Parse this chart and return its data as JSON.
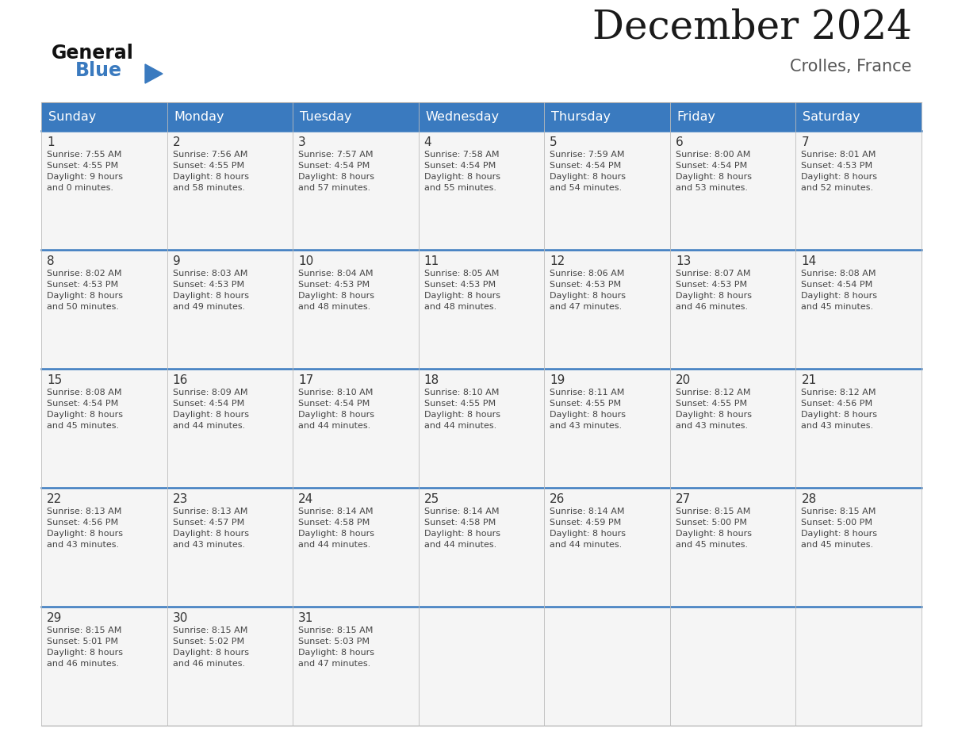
{
  "title": "December 2024",
  "subtitle": "Crolles, France",
  "header_color": "#3a7abf",
  "header_text_color": "#ffffff",
  "days_of_week": [
    "Sunday",
    "Monday",
    "Tuesday",
    "Wednesday",
    "Thursday",
    "Friday",
    "Saturday"
  ],
  "bg_color": "#ffffff",
  "cell_bg_color": "#f5f5f5",
  "divider_color": "#3a7abf",
  "day_number_color": "#333333",
  "text_color": "#444444",
  "calendar_data": [
    [
      {
        "day": 1,
        "sunrise": "7:55 AM",
        "sunset": "4:55 PM",
        "hours": 9,
        "minutes": 0
      },
      {
        "day": 2,
        "sunrise": "7:56 AM",
        "sunset": "4:55 PM",
        "hours": 8,
        "minutes": 58
      },
      {
        "day": 3,
        "sunrise": "7:57 AM",
        "sunset": "4:54 PM",
        "hours": 8,
        "minutes": 57
      },
      {
        "day": 4,
        "sunrise": "7:58 AM",
        "sunset": "4:54 PM",
        "hours": 8,
        "minutes": 55
      },
      {
        "day": 5,
        "sunrise": "7:59 AM",
        "sunset": "4:54 PM",
        "hours": 8,
        "minutes": 54
      },
      {
        "day": 6,
        "sunrise": "8:00 AM",
        "sunset": "4:54 PM",
        "hours": 8,
        "minutes": 53
      },
      {
        "day": 7,
        "sunrise": "8:01 AM",
        "sunset": "4:53 PM",
        "hours": 8,
        "minutes": 52
      }
    ],
    [
      {
        "day": 8,
        "sunrise": "8:02 AM",
        "sunset": "4:53 PM",
        "hours": 8,
        "minutes": 50
      },
      {
        "day": 9,
        "sunrise": "8:03 AM",
        "sunset": "4:53 PM",
        "hours": 8,
        "minutes": 49
      },
      {
        "day": 10,
        "sunrise": "8:04 AM",
        "sunset": "4:53 PM",
        "hours": 8,
        "minutes": 48
      },
      {
        "day": 11,
        "sunrise": "8:05 AM",
        "sunset": "4:53 PM",
        "hours": 8,
        "minutes": 48
      },
      {
        "day": 12,
        "sunrise": "8:06 AM",
        "sunset": "4:53 PM",
        "hours": 8,
        "minutes": 47
      },
      {
        "day": 13,
        "sunrise": "8:07 AM",
        "sunset": "4:53 PM",
        "hours": 8,
        "minutes": 46
      },
      {
        "day": 14,
        "sunrise": "8:08 AM",
        "sunset": "4:54 PM",
        "hours": 8,
        "minutes": 45
      }
    ],
    [
      {
        "day": 15,
        "sunrise": "8:08 AM",
        "sunset": "4:54 PM",
        "hours": 8,
        "minutes": 45
      },
      {
        "day": 16,
        "sunrise": "8:09 AM",
        "sunset": "4:54 PM",
        "hours": 8,
        "minutes": 44
      },
      {
        "day": 17,
        "sunrise": "8:10 AM",
        "sunset": "4:54 PM",
        "hours": 8,
        "minutes": 44
      },
      {
        "day": 18,
        "sunrise": "8:10 AM",
        "sunset": "4:55 PM",
        "hours": 8,
        "minutes": 44
      },
      {
        "day": 19,
        "sunrise": "8:11 AM",
        "sunset": "4:55 PM",
        "hours": 8,
        "minutes": 43
      },
      {
        "day": 20,
        "sunrise": "8:12 AM",
        "sunset": "4:55 PM",
        "hours": 8,
        "minutes": 43
      },
      {
        "day": 21,
        "sunrise": "8:12 AM",
        "sunset": "4:56 PM",
        "hours": 8,
        "minutes": 43
      }
    ],
    [
      {
        "day": 22,
        "sunrise": "8:13 AM",
        "sunset": "4:56 PM",
        "hours": 8,
        "minutes": 43
      },
      {
        "day": 23,
        "sunrise": "8:13 AM",
        "sunset": "4:57 PM",
        "hours": 8,
        "minutes": 43
      },
      {
        "day": 24,
        "sunrise": "8:14 AM",
        "sunset": "4:58 PM",
        "hours": 8,
        "minutes": 44
      },
      {
        "day": 25,
        "sunrise": "8:14 AM",
        "sunset": "4:58 PM",
        "hours": 8,
        "minutes": 44
      },
      {
        "day": 26,
        "sunrise": "8:14 AM",
        "sunset": "4:59 PM",
        "hours": 8,
        "minutes": 44
      },
      {
        "day": 27,
        "sunrise": "8:15 AM",
        "sunset": "5:00 PM",
        "hours": 8,
        "minutes": 45
      },
      {
        "day": 28,
        "sunrise": "8:15 AM",
        "sunset": "5:00 PM",
        "hours": 8,
        "minutes": 45
      }
    ],
    [
      {
        "day": 29,
        "sunrise": "8:15 AM",
        "sunset": "5:01 PM",
        "hours": 8,
        "minutes": 46
      },
      {
        "day": 30,
        "sunrise": "8:15 AM",
        "sunset": "5:02 PM",
        "hours": 8,
        "minutes": 46
      },
      {
        "day": 31,
        "sunrise": "8:15 AM",
        "sunset": "5:03 PM",
        "hours": 8,
        "minutes": 47
      },
      null,
      null,
      null,
      null
    ]
  ],
  "logo_general_color": "#111111",
  "logo_blue_color": "#3a7abf",
  "logo_triangle_color": "#3a7abf",
  "title_fontsize": 36,
  "subtitle_fontsize": 15,
  "header_fontsize": 11.5,
  "day_number_fontsize": 11,
  "cell_text_fontsize": 8
}
